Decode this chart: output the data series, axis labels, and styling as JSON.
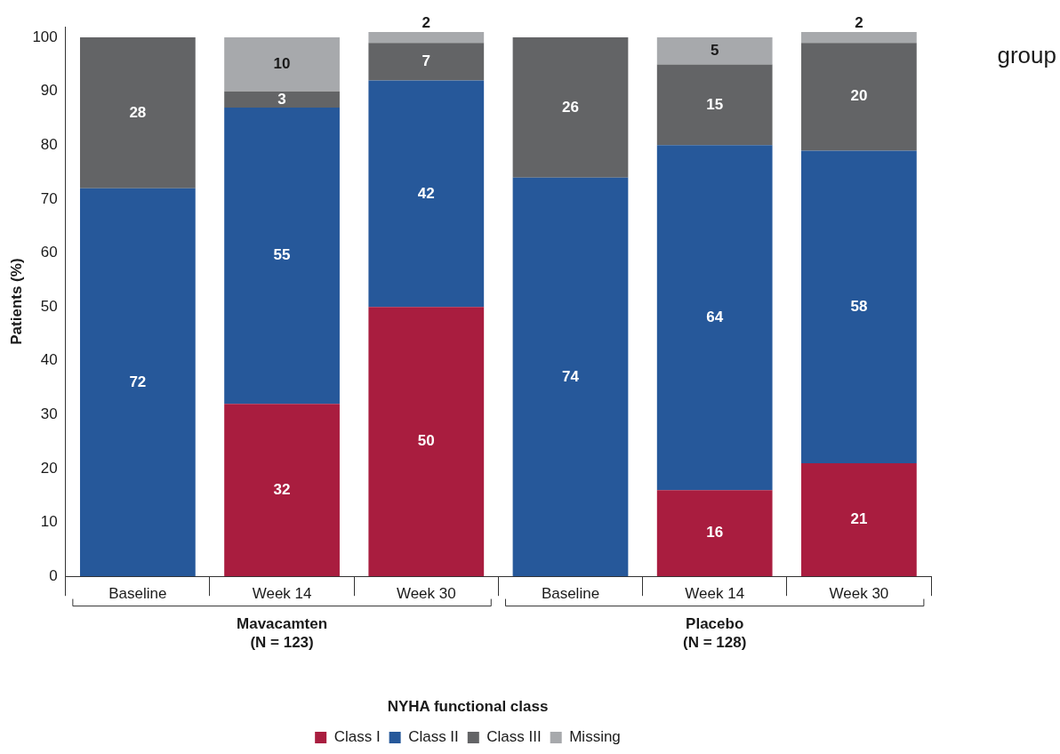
{
  "chart_data": {
    "type": "bar",
    "stacked": true,
    "ylabel": "Patients (%)",
    "legend_title": "NYHA functional class",
    "legend": "bottom",
    "data_labels": true,
    "grid": false,
    "categories": [
      "Baseline",
      "Week 14",
      "Week 30",
      "Baseline",
      "Week 14",
      "Week 30"
    ],
    "ylim": [
      0,
      102
    ],
    "yticks": [
      0,
      10,
      20,
      30,
      40,
      50,
      60,
      70,
      80,
      90,
      100
    ],
    "series": [
      {
        "name": "Class I",
        "color": "#a91d3f",
        "values": [
          null,
          32,
          50,
          null,
          16,
          21
        ]
      },
      {
        "name": "Class II",
        "color": "#26589a",
        "values": [
          72,
          55,
          42,
          74,
          64,
          58
        ]
      },
      {
        "name": "Class III",
        "color": "#636466",
        "values": [
          28,
          3,
          7,
          26,
          15,
          20
        ]
      },
      {
        "name": "Missing",
        "color": "#a7a9ac",
        "values": [
          null,
          10,
          2,
          null,
          5,
          2
        ]
      }
    ],
    "annotations": [
      "Mavacamten\n(N = 123)",
      "Placebo\n(N = 128)",
      "group"
    ]
  }
}
